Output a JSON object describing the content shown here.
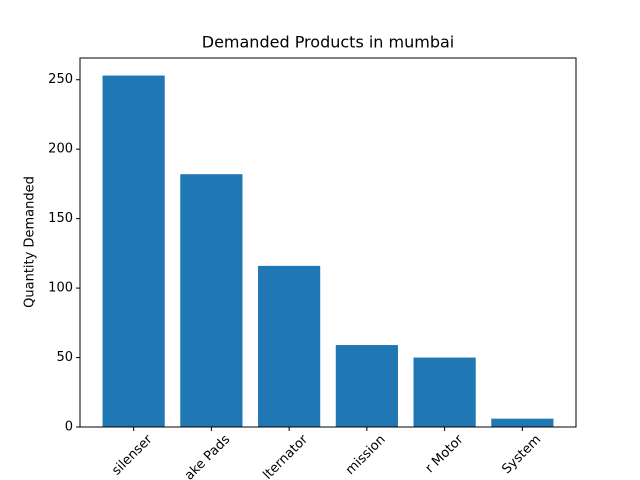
{
  "chart_data": {
    "type": "bar",
    "title": "Demanded Products in mumbai",
    "y_label": "Quantity Demanded",
    "categories": [
      "silenser",
      "ake Pads",
      "lternator",
      "mission",
      "r Motor",
      "System"
    ],
    "values": [
      253,
      182,
      116,
      59,
      50,
      6
    ],
    "color": "#1f77b4",
    "ylim": [
      0,
      265.65
    ],
    "yticks": [
      0,
      50,
      100,
      150,
      200,
      250
    ]
  }
}
